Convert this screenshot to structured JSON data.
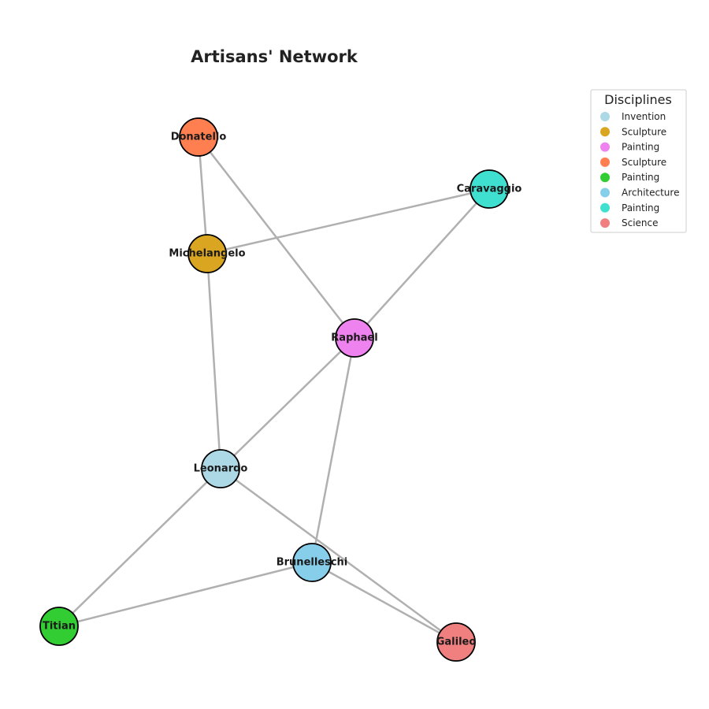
{
  "title": "Artisans' Network",
  "legend": {
    "title": "Disciplines",
    "entries": [
      {
        "label": "Invention",
        "color": "#add8e6"
      },
      {
        "label": "Sculpture",
        "color": "#daa520"
      },
      {
        "label": "Painting",
        "color": "#ee82ee"
      },
      {
        "label": "Sculpture",
        "color": "#ff7f50"
      },
      {
        "label": "Painting",
        "color": "#32cd32"
      },
      {
        "label": "Architecture",
        "color": "#87ceeb"
      },
      {
        "label": "Painting",
        "color": "#40e0d0"
      },
      {
        "label": "Science",
        "color": "#f08080"
      }
    ]
  },
  "nodes": [
    {
      "id": "donatello",
      "label": "Donatello",
      "color": "#ff7f50"
    },
    {
      "id": "caravaggio",
      "label": "Caravaggio",
      "color": "#40e0d0"
    },
    {
      "id": "michelangelo",
      "label": "Michelangelo",
      "color": "#daa520"
    },
    {
      "id": "raphael",
      "label": "Raphael",
      "color": "#ee82ee"
    },
    {
      "id": "leonardo",
      "label": "Leonardo",
      "color": "#add8e6"
    },
    {
      "id": "brunelleschi",
      "label": "Brunelleschi",
      "color": "#87ceeb"
    },
    {
      "id": "titian",
      "label": "Titian",
      "color": "#32cd32"
    },
    {
      "id": "galileo",
      "label": "Galileo",
      "color": "#f08080"
    }
  ],
  "edges": [
    [
      "donatello",
      "michelangelo"
    ],
    [
      "donatello",
      "raphael"
    ],
    [
      "michelangelo",
      "caravaggio"
    ],
    [
      "caravaggio",
      "raphael"
    ],
    [
      "michelangelo",
      "leonardo"
    ],
    [
      "raphael",
      "leonardo"
    ],
    [
      "raphael",
      "brunelleschi"
    ],
    [
      "leonardo",
      "titian"
    ],
    [
      "leonardo",
      "galileo"
    ],
    [
      "brunelleschi",
      "titian"
    ],
    [
      "brunelleschi",
      "galileo"
    ]
  ]
}
